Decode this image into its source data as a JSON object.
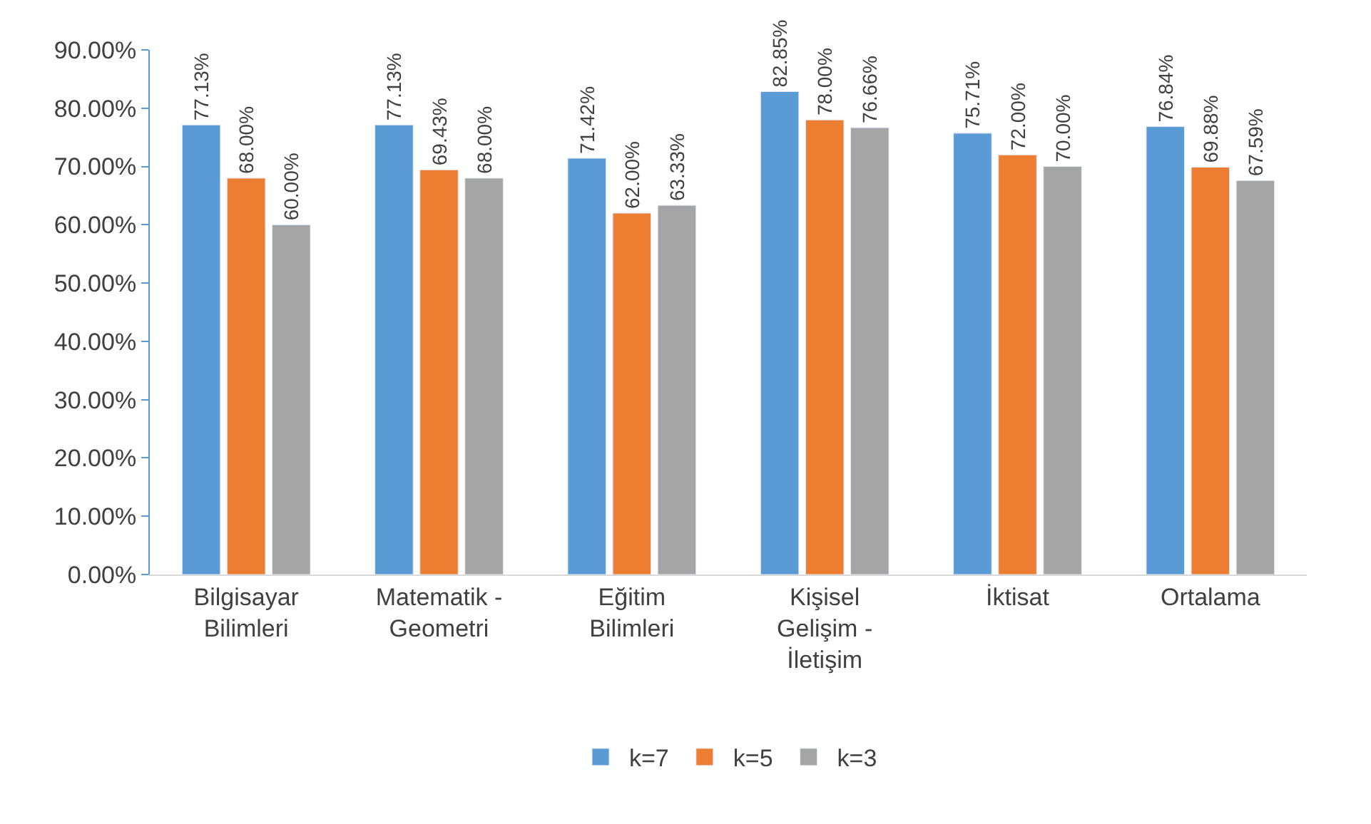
{
  "chart_data": {
    "type": "bar",
    "categories": [
      "Bilgisayar\nBilimleri",
      "Matematik -\nGeometri",
      "Eğitim\nBilimleri",
      "Kişisel\nGelişim -\nİletişim",
      "İktisat",
      "Ortalama"
    ],
    "series": [
      {
        "name": "k=7",
        "color": "#5b9bd5",
        "values": [
          77.13,
          77.13,
          71.42,
          82.85,
          75.71,
          76.84
        ],
        "value_labels": [
          "77.13%",
          "77.13%",
          "71.42%",
          "82.85%",
          "75.71%",
          "76.84%"
        ]
      },
      {
        "name": "k=5",
        "color": "#ed7d31",
        "values": [
          68.0,
          69.43,
          62.0,
          78.0,
          72.0,
          69.88
        ],
        "value_labels": [
          "68.00%",
          "69.43%",
          "62.00%",
          "78.00%",
          "72.00%",
          "69.88%"
        ]
      },
      {
        "name": "k=3",
        "color": "#a5a5a5",
        "values": [
          60.0,
          68.0,
          63.33,
          76.66,
          70.0,
          67.59
        ],
        "value_labels": [
          "60.00%",
          "68.00%",
          "63.33%",
          "76.66%",
          "70.00%",
          "67.59%"
        ]
      }
    ],
    "ylim": [
      0,
      90
    ],
    "yticks": [
      {
        "value": 0,
        "label": "0.00%"
      },
      {
        "value": 10,
        "label": "10.00%"
      },
      {
        "value": 20,
        "label": "20.00%"
      },
      {
        "value": 30,
        "label": "30.00%"
      },
      {
        "value": 40,
        "label": "40.00%"
      },
      {
        "value": 50,
        "label": "50.00%"
      },
      {
        "value": 60,
        "label": "60.00%"
      },
      {
        "value": 70,
        "label": "70.00%"
      },
      {
        "value": 80,
        "label": "80.00%"
      },
      {
        "value": 90,
        "label": "90.00%"
      }
    ],
    "legend": "bottom"
  }
}
